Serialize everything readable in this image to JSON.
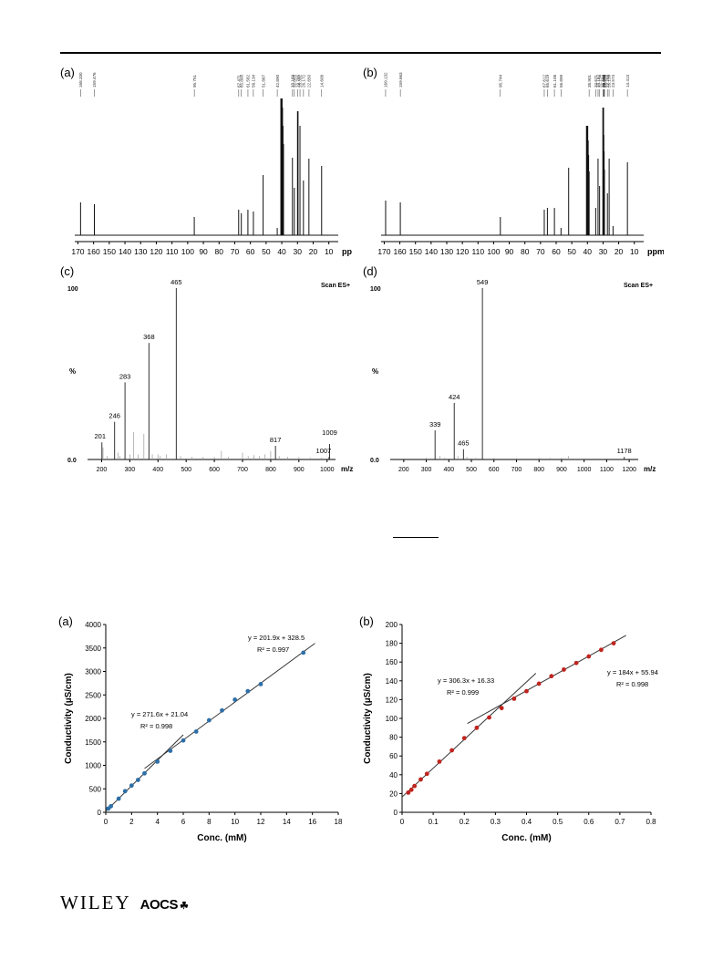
{
  "figure1": {
    "nmr_a": {
      "label": "(a)",
      "peak_labels": [
        "168.330",
        "159.476",
        "95.751",
        "67.471",
        "65.800",
        "61.582",
        "58.134",
        "51.887",
        "42.890",
        "33.169",
        "32.003",
        "29.785",
        "28.392",
        "26.172",
        "22.650",
        "14.608"
      ],
      "ticks": [
        "170",
        "160",
        "150",
        "140",
        "130",
        "120",
        "110",
        "100",
        "90",
        "80",
        "70",
        "60",
        "50",
        "40",
        "30",
        "20",
        "10"
      ],
      "unit": "ppm"
    },
    "nmr_b": {
      "label": "(b)",
      "peak_labels": [
        "169.132",
        "159.663",
        "95.744",
        "67.612",
        "65.619",
        "61.108",
        "56.899",
        "38.901",
        "34.671",
        "33.182",
        "32.154",
        "29.918",
        "29.683",
        "29.533",
        "29.258",
        "29.071",
        "27.203",
        "26.139",
        "23.574",
        "14.413"
      ],
      "ticks": [
        "170",
        "160",
        "150",
        "140",
        "130",
        "120",
        "110",
        "100",
        "90",
        "80",
        "70",
        "60",
        "50",
        "40",
        "30",
        "20",
        "10"
      ],
      "unit": "ppm"
    },
    "ms_c": {
      "label": "(c)",
      "scan": "Scan ES+",
      "y_top": "100",
      "y_mid": "%",
      "y_bottom": "0.0",
      "peak_labels": [
        "201",
        "246",
        "283",
        "368",
        "465",
        "817",
        "1007",
        "1009"
      ],
      "ticks": [
        "200",
        "300",
        "400",
        "500",
        "600",
        "700",
        "800",
        "900",
        "1000"
      ],
      "x_unit": "m/z"
    },
    "ms_d": {
      "label": "(d)",
      "scan": "Scan ES+",
      "y_top": "100",
      "y_mid": "%",
      "y_bottom": "0.0",
      "peak_labels": [
        "339",
        "424",
        "465",
        "549",
        "1178"
      ],
      "ticks": [
        "200",
        "300",
        "400",
        "500",
        "600",
        "700",
        "800",
        "900",
        "1000",
        "1100",
        "1200"
      ],
      "x_unit": "m/z"
    }
  },
  "figure2": {
    "panel_a": {
      "label": "(a)",
      "xlabel": "Conc. (mM)",
      "ylabel": "Conductivity (µS/cm)",
      "eq_low": "y = 271.6x + 21.04",
      "r2_low": "R² = 0.998",
      "eq_high": "y = 201.9x + 328.5",
      "r2_high": "R² = 0.997"
    },
    "panel_b": {
      "label": "(b)",
      "xlabel": "Conc. (mM)",
      "ylabel": "Conductivity (µS/cm)",
      "eq_low": "y = 306.3x + 16.33",
      "r2_low": "R² = 0.999",
      "eq_high": "y = 184x + 55.94",
      "r2_high": "R² = 0.998"
    }
  },
  "chart_data": [
    {
      "type": "scatter",
      "xlabel": "Conc. (mM)",
      "ylabel": "Conductivity (µS/cm)",
      "xlim": [
        0,
        18
      ],
      "ylim": [
        0,
        4000
      ],
      "xticks": [
        0,
        2,
        4,
        6,
        8,
        10,
        12,
        14,
        16,
        18
      ],
      "yticks": [
        0,
        500,
        1000,
        1500,
        2000,
        2500,
        3000,
        3500,
        4000
      ],
      "grid": false,
      "color": "#2e6fa7",
      "points": [
        [
          0.2,
          80
        ],
        [
          0.4,
          130
        ],
        [
          1.0,
          290
        ],
        [
          1.5,
          450
        ],
        [
          2.0,
          570
        ],
        [
          2.5,
          690
        ],
        [
          3.0,
          830
        ],
        [
          4.0,
          1080
        ],
        [
          5.0,
          1310
        ],
        [
          6.0,
          1530
        ],
        [
          7.0,
          1720
        ],
        [
          8.0,
          1960
        ],
        [
          9.0,
          2170
        ],
        [
          10.0,
          2400
        ],
        [
          11.0,
          2580
        ],
        [
          12.0,
          2730
        ],
        [
          15.3,
          3400
        ]
      ],
      "fits": [
        {
          "slope": 271.6,
          "intercept": 21.04,
          "x_range": [
            0,
            6
          ]
        },
        {
          "slope": 201.9,
          "intercept": 328.5,
          "x_range": [
            3,
            16.2
          ]
        }
      ]
    },
    {
      "type": "scatter",
      "xlabel": "Conc. (mM)",
      "ylabel": "Conductivity (µS/cm)",
      "xlim": [
        0,
        0.8
      ],
      "ylim": [
        0,
        200
      ],
      "xticks": [
        0,
        0.1,
        0.2,
        0.3,
        0.4,
        0.5,
        0.6,
        0.7,
        0.8
      ],
      "yticks": [
        0,
        20,
        40,
        60,
        80,
        100,
        120,
        140,
        160,
        180,
        200
      ],
      "grid": false,
      "color": "#c0241f",
      "points": [
        [
          0.02,
          21
        ],
        [
          0.03,
          24
        ],
        [
          0.04,
          28
        ],
        [
          0.06,
          35
        ],
        [
          0.08,
          41
        ],
        [
          0.12,
          54
        ],
        [
          0.16,
          66
        ],
        [
          0.2,
          79
        ],
        [
          0.24,
          90
        ],
        [
          0.28,
          101
        ],
        [
          0.32,
          111
        ],
        [
          0.36,
          121
        ],
        [
          0.4,
          129
        ],
        [
          0.44,
          137
        ],
        [
          0.48,
          145
        ],
        [
          0.52,
          152
        ],
        [
          0.56,
          159
        ],
        [
          0.6,
          166
        ],
        [
          0.64,
          173
        ],
        [
          0.68,
          180
        ]
      ],
      "fits": [
        {
          "slope": 306.3,
          "intercept": 16.33,
          "x_range": [
            0.0,
            0.43
          ]
        },
        {
          "slope": 184,
          "intercept": 55.94,
          "x_range": [
            0.21,
            0.72
          ]
        }
      ]
    }
  ]
}
